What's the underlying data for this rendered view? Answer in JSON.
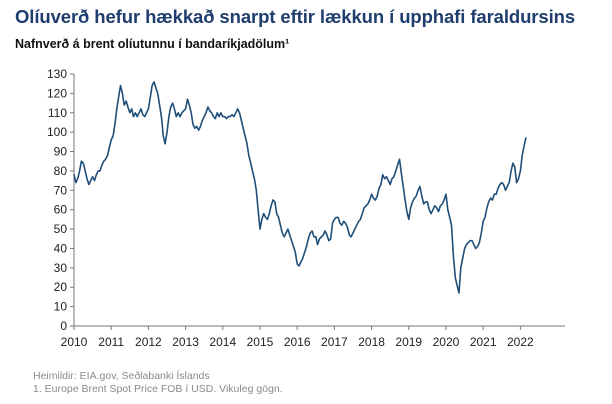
{
  "title": "Olíuverð hefur hækkað snarpt eftir lækkun í upphafi faraldursins",
  "subtitle": "Nafnverð á brent olíutunnu í bandaríkjadölum¹",
  "source_line1": "Heimildir: EIA.gov, Seðlabanki Íslands",
  "source_line2": "1. Europe Brent Spot Price FOB í USD. Vikuleg gögn.",
  "colors": {
    "line": "#1f4e79",
    "title": "#1f3d6e",
    "axis": "#7a7a7a"
  },
  "chart_data": {
    "type": "line",
    "title": "Olíuverð hefur hækkað snarpt eftir lækkun í upphafi faraldursins",
    "xlabel": "",
    "ylabel": "",
    "xlim": [
      2010,
      2023.2
    ],
    "ylim": [
      0,
      130
    ],
    "y_ticks": [
      0,
      10,
      20,
      30,
      40,
      50,
      60,
      70,
      80,
      90,
      100,
      110,
      120,
      130
    ],
    "x_ticks": [
      2010,
      2011,
      2012,
      2013,
      2014,
      2015,
      2016,
      2017,
      2018,
      2019,
      2020,
      2021,
      2022
    ],
    "grid": false,
    "legend": "none",
    "series": [
      {
        "x": [
          2010.0,
          2010.05,
          2010.1,
          2010.15,
          2010.2,
          2010.25,
          2010.3,
          2010.35,
          2010.4,
          2010.45,
          2010.5,
          2010.55,
          2010.6,
          2010.65,
          2010.7,
          2010.75,
          2010.8,
          2010.85,
          2010.9,
          2010.95,
          2011.0,
          2011.05,
          2011.1,
          2011.15,
          2011.2,
          2011.25,
          2011.3,
          2011.35,
          2011.4,
          2011.45,
          2011.5,
          2011.55,
          2011.6,
          2011.65,
          2011.7,
          2011.75,
          2011.8,
          2011.85,
          2011.9,
          2011.95,
          2012.0,
          2012.05,
          2012.1,
          2012.15,
          2012.2,
          2012.25,
          2012.3,
          2012.35,
          2012.4,
          2012.45,
          2012.5,
          2012.55,
          2012.6,
          2012.65,
          2012.7,
          2012.75,
          2012.8,
          2012.85,
          2012.9,
          2012.95,
          2013.0,
          2013.05,
          2013.1,
          2013.15,
          2013.2,
          2013.25,
          2013.3,
          2013.35,
          2013.4,
          2013.45,
          2013.5,
          2013.55,
          2013.6,
          2013.65,
          2013.7,
          2013.75,
          2013.8,
          2013.85,
          2013.9,
          2013.95,
          2014.0,
          2014.05,
          2014.1,
          2014.15,
          2014.2,
          2014.25,
          2014.3,
          2014.35,
          2014.4,
          2014.45,
          2014.5,
          2014.55,
          2014.6,
          2014.65,
          2014.7,
          2014.75,
          2014.8,
          2014.85,
          2014.9,
          2014.95,
          2015.0,
          2015.05,
          2015.1,
          2015.15,
          2015.2,
          2015.25,
          2015.3,
          2015.35,
          2015.4,
          2015.45,
          2015.5,
          2015.55,
          2015.6,
          2015.65,
          2015.7,
          2015.75,
          2015.8,
          2015.85,
          2015.9,
          2015.95,
          2016.0,
          2016.05,
          2016.1,
          2016.15,
          2016.2,
          2016.25,
          2016.3,
          2016.35,
          2016.4,
          2016.45,
          2016.5,
          2016.55,
          2016.6,
          2016.65,
          2016.7,
          2016.75,
          2016.8,
          2016.85,
          2016.9,
          2016.95,
          2017.0,
          2017.05,
          2017.1,
          2017.15,
          2017.2,
          2017.25,
          2017.3,
          2017.35,
          2017.4,
          2017.45,
          2017.5,
          2017.55,
          2017.6,
          2017.65,
          2017.7,
          2017.75,
          2017.8,
          2017.85,
          2017.9,
          2017.95,
          2018.0,
          2018.05,
          2018.1,
          2018.15,
          2018.2,
          2018.25,
          2018.3,
          2018.35,
          2018.4,
          2018.45,
          2018.5,
          2018.55,
          2018.6,
          2018.65,
          2018.7,
          2018.75,
          2018.8,
          2018.85,
          2018.9,
          2018.95,
          2019.0,
          2019.05,
          2019.1,
          2019.15,
          2019.2,
          2019.25,
          2019.3,
          2019.35,
          2019.4,
          2019.45,
          2019.5,
          2019.55,
          2019.6,
          2019.65,
          2019.7,
          2019.75,
          2019.8,
          2019.85,
          2019.9,
          2019.95,
          2020.0,
          2020.05,
          2020.1,
          2020.15,
          2020.2,
          2020.25,
          2020.3,
          2020.35,
          2020.4,
          2020.45,
          2020.5,
          2020.55,
          2020.6,
          2020.65,
          2020.7,
          2020.75,
          2020.8,
          2020.85,
          2020.9,
          2020.95,
          2021.0,
          2021.05,
          2021.1,
          2021.15,
          2021.2,
          2021.25,
          2021.3,
          2021.35,
          2021.4,
          2021.45,
          2021.5,
          2021.55,
          2021.6,
          2021.65,
          2021.7,
          2021.75,
          2021.8,
          2021.85,
          2021.9,
          2021.95,
          2022.0,
          2022.05,
          2022.1,
          2022.15
        ],
        "values": [
          78,
          74,
          76,
          80,
          85,
          84,
          80,
          76,
          73,
          75,
          77,
          75,
          78,
          80,
          80,
          83,
          85,
          86,
          88,
          92,
          96,
          98,
          104,
          112,
          118,
          124,
          120,
          114,
          116,
          113,
          110,
          112,
          108,
          110,
          108,
          110,
          112,
          109,
          108,
          110,
          112,
          118,
          124,
          126,
          123,
          120,
          114,
          108,
          98,
          94,
          100,
          108,
          113,
          115,
          112,
          108,
          110,
          108,
          110,
          111,
          112,
          117,
          114,
          110,
          104,
          102,
          103,
          101,
          103,
          106,
          108,
          110,
          113,
          111,
          110,
          108,
          107,
          110,
          108,
          110,
          108,
          108,
          107,
          108,
          108,
          109,
          108,
          110,
          112,
          110,
          106,
          102,
          98,
          94,
          88,
          84,
          80,
          76,
          70,
          60,
          50,
          55,
          58,
          56,
          55,
          58,
          62,
          65,
          64,
          58,
          56,
          52,
          48,
          46,
          48,
          50,
          47,
          44,
          41,
          38,
          32,
          31,
          33,
          35,
          38,
          41,
          45,
          48,
          49,
          46,
          46,
          42,
          45,
          46,
          47,
          49,
          47,
          44,
          45,
          53,
          55,
          56,
          56,
          53,
          52,
          54,
          53,
          51,
          47,
          46,
          48,
          50,
          52,
          54,
          55,
          58,
          61,
          62,
          63,
          65,
          68,
          66,
          65,
          67,
          71,
          73,
          78,
          76,
          77,
          75,
          73,
          76,
          77,
          80,
          83,
          86,
          79,
          72,
          65,
          59,
          55,
          61,
          64,
          66,
          67,
          70,
          72,
          67,
          63,
          64,
          64,
          60,
          58,
          60,
          62,
          61,
          59,
          62,
          63,
          65,
          68,
          60,
          56,
          52,
          36,
          25,
          21,
          17,
          30,
          35,
          40,
          42,
          43,
          44,
          44,
          42,
          40,
          41,
          43,
          48,
          54,
          56,
          61,
          64,
          66,
          65,
          68,
          68,
          71,
          73,
          74,
          73,
          70,
          72,
          74,
          80,
          84,
          82,
          74,
          76,
          80,
          88,
          93,
          97
        ]
      }
    ]
  }
}
